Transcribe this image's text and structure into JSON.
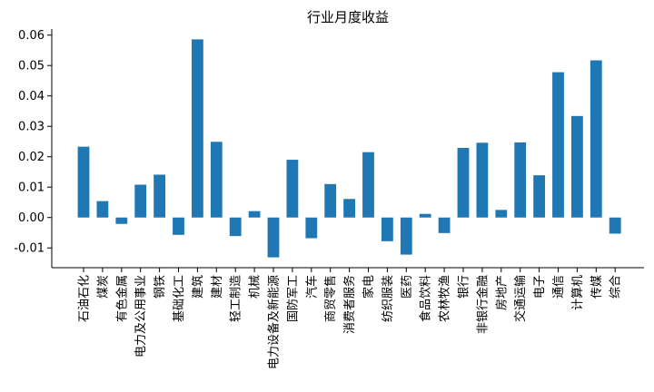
{
  "chart_data": {
    "type": "bar",
    "title": "行业月度收益",
    "xlabel": "",
    "ylabel": "",
    "ylim": [
      -0.0165,
      0.062
    ],
    "yticks": [
      -0.01,
      0.0,
      0.01,
      0.02,
      0.03,
      0.04,
      0.05,
      0.06
    ],
    "ytick_labels": [
      "-0.01",
      "0.00",
      "0.01",
      "0.02",
      "0.03",
      "0.04",
      "0.05",
      "0.06"
    ],
    "bar_color": "#1f77b4",
    "grid": false,
    "categories": [
      "石油石化",
      "煤炭",
      "有色金属",
      "电力及公用事业",
      "钢铁",
      "基础化工",
      "建筑",
      "建材",
      "轻工制造",
      "机械",
      "电力设备及新能源",
      "国防军工",
      "汽车",
      "商贸零售",
      "消费者服务",
      "家电",
      "纺织服装",
      "医药",
      "食品饮料",
      "农林牧渔",
      "银行",
      "非银行金融",
      "房地产",
      "交通运输",
      "电子",
      "通信",
      "计算机",
      "传媒",
      "综合"
    ],
    "values": [
      0.0233,
      0.0054,
      -0.0021,
      0.0108,
      0.0141,
      -0.0057,
      0.0586,
      0.0249,
      -0.0061,
      0.0021,
      -0.0131,
      0.019,
      -0.0068,
      0.011,
      0.0061,
      0.0215,
      -0.0078,
      -0.0122,
      0.0012,
      -0.0051,
      0.0229,
      0.0246,
      0.0025,
      0.0247,
      0.0139,
      0.0478,
      0.0334,
      0.0517,
      -0.0053
    ]
  }
}
